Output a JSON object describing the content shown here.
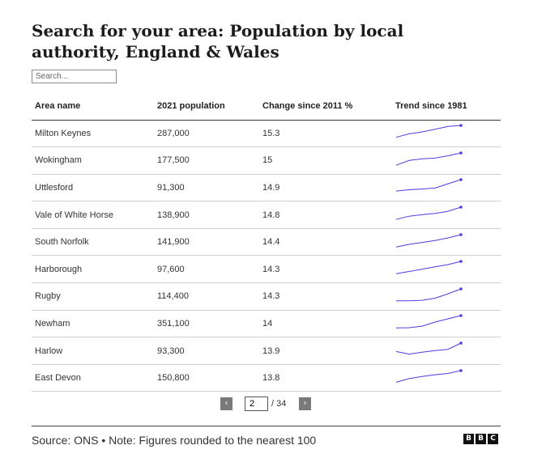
{
  "title": "Search for your area: Population by local authority, England & Wales",
  "search": {
    "placeholder": "Search..."
  },
  "columns": [
    "Area name",
    "2021 population",
    "Change since 2011 %",
    "Trend since 1981"
  ],
  "rows": [
    {
      "area": "Milton Keynes",
      "population": "287,000",
      "change": "15.3",
      "trend": [
        0.08,
        0.35,
        0.5,
        0.7,
        0.92,
        1.0
      ]
    },
    {
      "area": "Wokingham",
      "population": "177,500",
      "change": "15",
      "trend": [
        0.05,
        0.42,
        0.55,
        0.6,
        0.78,
        1.0
      ]
    },
    {
      "area": "Uttlesford",
      "population": "91,300",
      "change": "14.9",
      "trend": [
        0.12,
        0.22,
        0.28,
        0.35,
        0.68,
        1.0
      ]
    },
    {
      "area": "Vale of White Horse",
      "population": "138,900",
      "change": "14.8",
      "trend": [
        0.05,
        0.3,
        0.42,
        0.52,
        0.68,
        1.0
      ]
    },
    {
      "area": "South Norfolk",
      "population": "141,900",
      "change": "14.4",
      "trend": [
        0.05,
        0.25,
        0.4,
        0.55,
        0.75,
        1.0
      ]
    },
    {
      "area": "Harborough",
      "population": "97,600",
      "change": "14.3",
      "trend": [
        0.05,
        0.22,
        0.4,
        0.58,
        0.75,
        1.0
      ]
    },
    {
      "area": "Rugby",
      "population": "114,400",
      "change": "14.3",
      "trend": [
        0.08,
        0.08,
        0.12,
        0.28,
        0.62,
        1.0
      ]
    },
    {
      "area": "Newham",
      "population": "351,100",
      "change": "14",
      "trend": [
        0.05,
        0.06,
        0.18,
        0.5,
        0.75,
        1.0
      ]
    },
    {
      "area": "Harlow",
      "population": "93,300",
      "change": "13.9",
      "trend": [
        0.35,
        0.15,
        0.3,
        0.42,
        0.52,
        1.0
      ]
    },
    {
      "area": "East Devon",
      "population": "150,800",
      "change": "13.8",
      "trend": [
        0.1,
        0.38,
        0.55,
        0.68,
        0.78,
        1.0
      ]
    }
  ],
  "pagination": {
    "prev_label": "‹",
    "next_label": "›",
    "current_page": "2",
    "total": "/ 34"
  },
  "footer": {
    "source": "Source: ONS • Note: Figures rounded to the nearest 100",
    "logo": [
      "B",
      "B",
      "C"
    ]
  },
  "colors": {
    "sparkline": "#4b3ee0",
    "pager_button": "#7a7a7a"
  }
}
